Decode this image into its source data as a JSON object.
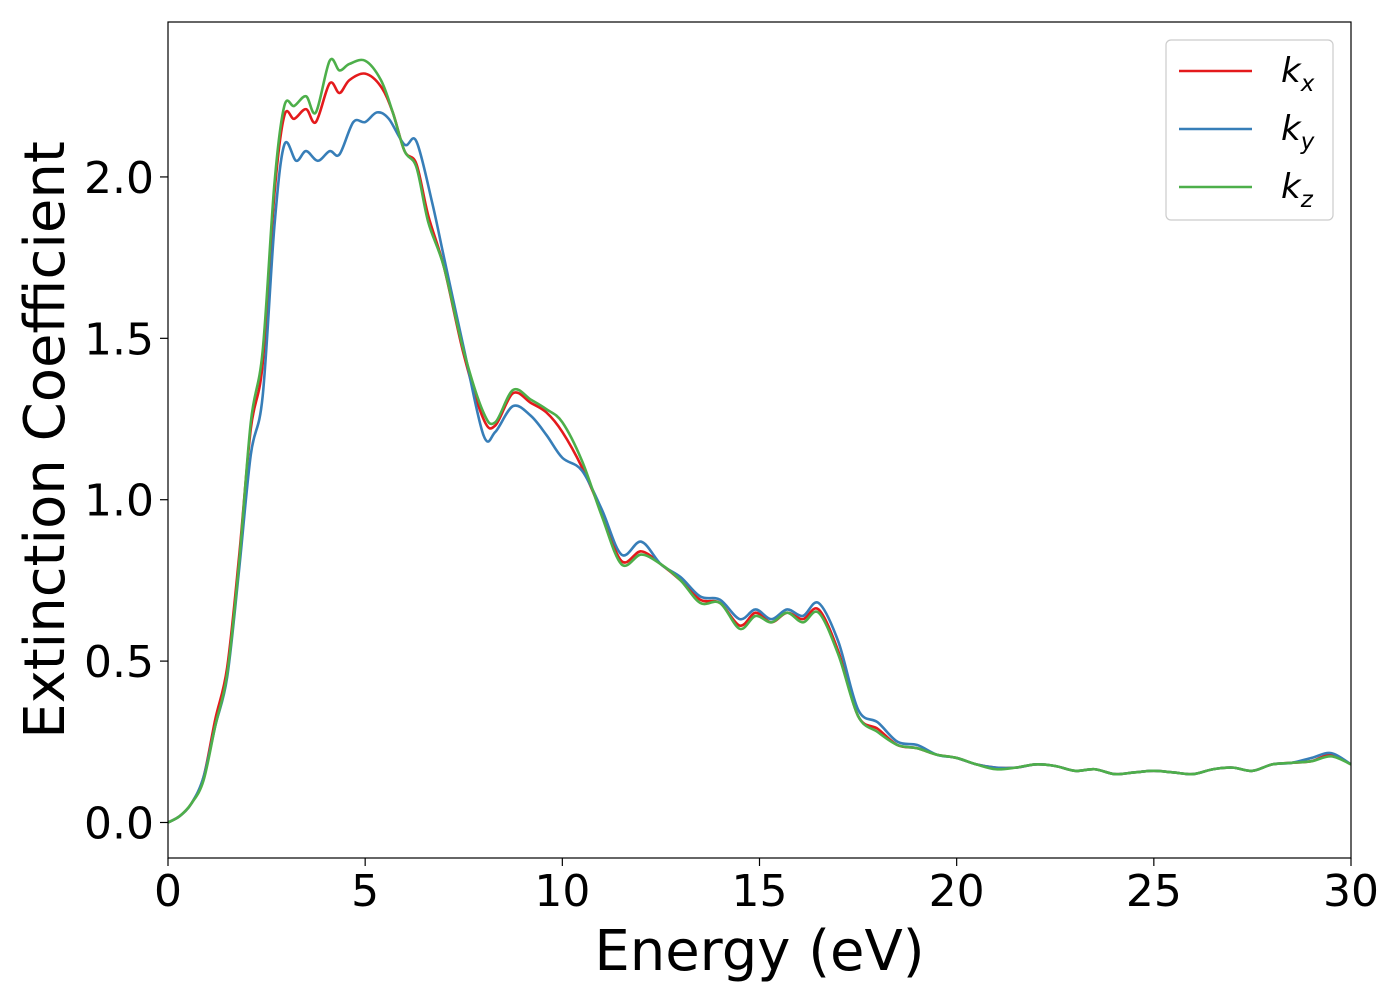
{
  "chart_data": {
    "type": "line",
    "title": "",
    "xlabel": "Energy (eV)",
    "ylabel": "Extinction Coefficient",
    "xlim": [
      0,
      30
    ],
    "ylim": [
      -0.11,
      2.48
    ],
    "grid": false,
    "legend_position": "top-right",
    "x_ticks": [
      0,
      5,
      10,
      15,
      20,
      25,
      30
    ],
    "x_tick_labels": [
      "0",
      "5",
      "10",
      "15",
      "20",
      "25",
      "30"
    ],
    "y_ticks": [
      0.0,
      0.5,
      1.0,
      1.5,
      2.0
    ],
    "y_tick_labels": [
      "0.0",
      "0.5",
      "1.0",
      "1.5",
      "2.0"
    ],
    "series": [
      {
        "name": "k_x",
        "label_main": "k",
        "label_sub": "x",
        "color": "#e41a1c",
        "points": [
          [
            0,
            0.0
          ],
          [
            0.3,
            0.02
          ],
          [
            0.6,
            0.06
          ],
          [
            0.9,
            0.14
          ],
          [
            1.2,
            0.32
          ],
          [
            1.5,
            0.48
          ],
          [
            1.8,
            0.82
          ],
          [
            2.1,
            1.22
          ],
          [
            2.4,
            1.42
          ],
          [
            2.7,
            1.95
          ],
          [
            2.95,
            2.19
          ],
          [
            3.2,
            2.18
          ],
          [
            3.5,
            2.21
          ],
          [
            3.75,
            2.17
          ],
          [
            4.1,
            2.29
          ],
          [
            4.35,
            2.26
          ],
          [
            4.6,
            2.3
          ],
          [
            5.0,
            2.32
          ],
          [
            5.4,
            2.28
          ],
          [
            5.7,
            2.2
          ],
          [
            6.0,
            2.08
          ],
          [
            6.3,
            2.04
          ],
          [
            6.6,
            1.88
          ],
          [
            7.0,
            1.72
          ],
          [
            7.5,
            1.45
          ],
          [
            8.0,
            1.25
          ],
          [
            8.3,
            1.23
          ],
          [
            8.75,
            1.33
          ],
          [
            9.2,
            1.3
          ],
          [
            9.6,
            1.27
          ],
          [
            10.0,
            1.21
          ],
          [
            10.5,
            1.1
          ],
          [
            11.0,
            0.96
          ],
          [
            11.5,
            0.81
          ],
          [
            12.0,
            0.84
          ],
          [
            12.5,
            0.8
          ],
          [
            13.0,
            0.75
          ],
          [
            13.5,
            0.69
          ],
          [
            14.0,
            0.68
          ],
          [
            14.5,
            0.61
          ],
          [
            14.9,
            0.65
          ],
          [
            15.3,
            0.62
          ],
          [
            15.7,
            0.65
          ],
          [
            16.1,
            0.63
          ],
          [
            16.5,
            0.66
          ],
          [
            17.0,
            0.53
          ],
          [
            17.5,
            0.33
          ],
          [
            18.0,
            0.29
          ],
          [
            18.5,
            0.24
          ],
          [
            19.0,
            0.23
          ],
          [
            19.5,
            0.21
          ],
          [
            20.0,
            0.2
          ],
          [
            20.5,
            0.18
          ],
          [
            21.0,
            0.17
          ],
          [
            21.5,
            0.17
          ],
          [
            22.0,
            0.18
          ],
          [
            22.5,
            0.175
          ],
          [
            23.0,
            0.16
          ],
          [
            23.5,
            0.165
          ],
          [
            24.0,
            0.15
          ],
          [
            24.5,
            0.155
          ],
          [
            25.0,
            0.16
          ],
          [
            25.5,
            0.155
          ],
          [
            26.0,
            0.15
          ],
          [
            26.5,
            0.165
          ],
          [
            27.0,
            0.17
          ],
          [
            27.5,
            0.16
          ],
          [
            28.0,
            0.18
          ],
          [
            28.5,
            0.185
          ],
          [
            29.0,
            0.19
          ],
          [
            29.5,
            0.21
          ],
          [
            30.0,
            0.18
          ]
        ]
      },
      {
        "name": "k_y",
        "label_main": "k",
        "label_sub": "y",
        "color": "#377eb8",
        "points": [
          [
            0,
            0.0
          ],
          [
            0.3,
            0.02
          ],
          [
            0.6,
            0.06
          ],
          [
            0.9,
            0.14
          ],
          [
            1.2,
            0.3
          ],
          [
            1.5,
            0.45
          ],
          [
            1.8,
            0.78
          ],
          [
            2.1,
            1.14
          ],
          [
            2.4,
            1.32
          ],
          [
            2.7,
            1.85
          ],
          [
            2.95,
            2.1
          ],
          [
            3.25,
            2.05
          ],
          [
            3.5,
            2.08
          ],
          [
            3.8,
            2.05
          ],
          [
            4.1,
            2.08
          ],
          [
            4.35,
            2.07
          ],
          [
            4.7,
            2.17
          ],
          [
            5.0,
            2.17
          ],
          [
            5.3,
            2.2
          ],
          [
            5.6,
            2.18
          ],
          [
            6.0,
            2.1
          ],
          [
            6.3,
            2.11
          ],
          [
            6.7,
            1.92
          ],
          [
            7.0,
            1.75
          ],
          [
            7.5,
            1.47
          ],
          [
            8.0,
            1.2
          ],
          [
            8.3,
            1.21
          ],
          [
            8.75,
            1.29
          ],
          [
            9.2,
            1.26
          ],
          [
            9.6,
            1.2
          ],
          [
            10.0,
            1.13
          ],
          [
            10.5,
            1.09
          ],
          [
            11.0,
            0.97
          ],
          [
            11.5,
            0.83
          ],
          [
            12.0,
            0.87
          ],
          [
            12.5,
            0.8
          ],
          [
            13.0,
            0.76
          ],
          [
            13.5,
            0.7
          ],
          [
            14.0,
            0.69
          ],
          [
            14.5,
            0.63
          ],
          [
            14.9,
            0.66
          ],
          [
            15.3,
            0.63
          ],
          [
            15.7,
            0.66
          ],
          [
            16.1,
            0.64
          ],
          [
            16.5,
            0.68
          ],
          [
            17.0,
            0.56
          ],
          [
            17.5,
            0.35
          ],
          [
            18.0,
            0.31
          ],
          [
            18.5,
            0.25
          ],
          [
            19.0,
            0.24
          ],
          [
            19.5,
            0.21
          ],
          [
            20.0,
            0.2
          ],
          [
            20.5,
            0.18
          ],
          [
            21.0,
            0.17
          ],
          [
            21.5,
            0.17
          ],
          [
            22.0,
            0.18
          ],
          [
            22.5,
            0.175
          ],
          [
            23.0,
            0.16
          ],
          [
            23.5,
            0.165
          ],
          [
            24.0,
            0.15
          ],
          [
            24.5,
            0.155
          ],
          [
            25.0,
            0.16
          ],
          [
            25.5,
            0.155
          ],
          [
            26.0,
            0.15
          ],
          [
            26.5,
            0.165
          ],
          [
            27.0,
            0.17
          ],
          [
            27.5,
            0.16
          ],
          [
            28.0,
            0.18
          ],
          [
            28.5,
            0.185
          ],
          [
            29.0,
            0.2
          ],
          [
            29.5,
            0.215
          ],
          [
            30.0,
            0.18
          ]
        ]
      },
      {
        "name": "k_z",
        "label_main": "k",
        "label_sub": "z",
        "color": "#4daf4a",
        "points": [
          [
            0,
            0.0
          ],
          [
            0.3,
            0.02
          ],
          [
            0.6,
            0.06
          ],
          [
            0.9,
            0.13
          ],
          [
            1.2,
            0.3
          ],
          [
            1.5,
            0.46
          ],
          [
            1.8,
            0.8
          ],
          [
            2.1,
            1.24
          ],
          [
            2.4,
            1.46
          ],
          [
            2.7,
            1.98
          ],
          [
            2.95,
            2.22
          ],
          [
            3.2,
            2.22
          ],
          [
            3.5,
            2.25
          ],
          [
            3.75,
            2.2
          ],
          [
            4.1,
            2.36
          ],
          [
            4.35,
            2.33
          ],
          [
            4.6,
            2.35
          ],
          [
            5.0,
            2.36
          ],
          [
            5.4,
            2.3
          ],
          [
            5.7,
            2.2
          ],
          [
            6.0,
            2.08
          ],
          [
            6.3,
            2.03
          ],
          [
            6.6,
            1.86
          ],
          [
            7.0,
            1.72
          ],
          [
            7.5,
            1.46
          ],
          [
            8.0,
            1.27
          ],
          [
            8.3,
            1.24
          ],
          [
            8.75,
            1.34
          ],
          [
            9.2,
            1.31
          ],
          [
            9.6,
            1.28
          ],
          [
            10.0,
            1.24
          ],
          [
            10.5,
            1.12
          ],
          [
            11.0,
            0.95
          ],
          [
            11.5,
            0.8
          ],
          [
            12.0,
            0.83
          ],
          [
            12.5,
            0.8
          ],
          [
            13.0,
            0.75
          ],
          [
            13.5,
            0.68
          ],
          [
            14.0,
            0.68
          ],
          [
            14.5,
            0.6
          ],
          [
            14.9,
            0.64
          ],
          [
            15.3,
            0.62
          ],
          [
            15.7,
            0.65
          ],
          [
            16.1,
            0.62
          ],
          [
            16.5,
            0.65
          ],
          [
            17.0,
            0.52
          ],
          [
            17.5,
            0.33
          ],
          [
            18.0,
            0.28
          ],
          [
            18.5,
            0.24
          ],
          [
            19.0,
            0.23
          ],
          [
            19.5,
            0.21
          ],
          [
            20.0,
            0.2
          ],
          [
            20.5,
            0.18
          ],
          [
            21.0,
            0.165
          ],
          [
            21.5,
            0.17
          ],
          [
            22.0,
            0.18
          ],
          [
            22.5,
            0.175
          ],
          [
            23.0,
            0.16
          ],
          [
            23.5,
            0.165
          ],
          [
            24.0,
            0.15
          ],
          [
            24.5,
            0.155
          ],
          [
            25.0,
            0.16
          ],
          [
            25.5,
            0.155
          ],
          [
            26.0,
            0.15
          ],
          [
            26.5,
            0.165
          ],
          [
            27.0,
            0.17
          ],
          [
            27.5,
            0.16
          ],
          [
            28.0,
            0.18
          ],
          [
            28.5,
            0.185
          ],
          [
            29.0,
            0.19
          ],
          [
            29.5,
            0.205
          ],
          [
            30.0,
            0.18
          ]
        ]
      }
    ]
  }
}
